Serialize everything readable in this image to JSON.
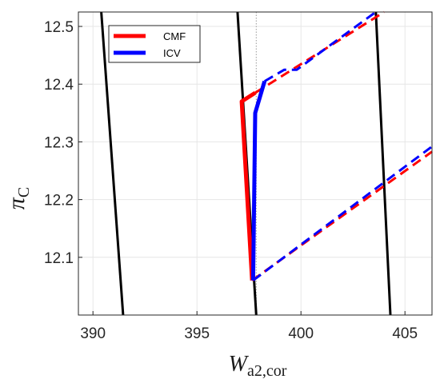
{
  "chart_data": {
    "type": "line",
    "title": "",
    "xlabel": {
      "main": "W",
      "sub": "a2,cor"
    },
    "ylabel": {
      "main": "π",
      "sub": "C"
    },
    "xlim": [
      389.3,
      406.3
    ],
    "ylim": [
      12.0,
      12.525
    ],
    "grid": true,
    "legend_position": "top-left",
    "x_ticks": [
      390,
      395,
      400,
      405
    ],
    "x_tick_labels": [
      "390",
      "395",
      "400",
      "405"
    ],
    "y_ticks": [
      12.1,
      12.2,
      12.3,
      12.4,
      12.5
    ],
    "y_tick_labels": [
      "12.1",
      "12.2",
      "12.3",
      "12.4",
      "12.5"
    ],
    "reference_line_x": 397.85,
    "colors": {
      "CMF": "#ff0000",
      "ICV": "#0000ff",
      "speed_line": "#000000",
      "reference": "#9a9a9a",
      "grid": "#e6e6e6"
    },
    "speed_lines": [
      {
        "x": [
          390.4,
          391.45
        ],
        "y": [
          12.525,
          12.0
        ]
      },
      {
        "x": [
          396.95,
          397.85
        ],
        "y": [
          12.525,
          12.0
        ]
      },
      {
        "x": [
          403.6,
          404.3
        ],
        "y": [
          12.525,
          12.0
        ]
      }
    ],
    "series": [
      {
        "name": "CMF",
        "color": "#ff0000",
        "segments": [
          {
            "style": "solid",
            "x": [
              397.65,
              397.15,
              397.8
            ],
            "y": [
              12.06,
              12.37,
              12.385
            ]
          },
          {
            "style": "dashed",
            "x": [
              397.8,
              404.0
            ],
            "y": [
              12.385,
              12.525
            ]
          },
          {
            "style": "dashed",
            "x": [
              397.65,
              406.3
            ],
            "y": [
              12.06,
              12.283
            ]
          }
        ]
      },
      {
        "name": "ICV",
        "color": "#0000ff",
        "segments": [
          {
            "style": "solid",
            "x": [
              397.7,
              397.8,
              398.25
            ],
            "y": [
              12.06,
              12.35,
              12.405
            ]
          },
          {
            "style": "dashed",
            "x": [
              398.25,
              399.2,
              399.8,
              401.5,
              403.6
            ],
            "y": [
              12.405,
              12.425,
              12.425,
              12.47,
              12.525
            ]
          },
          {
            "style": "dashed",
            "x": [
              397.7,
              406.3
            ],
            "y": [
              12.06,
              12.292
            ]
          }
        ]
      }
    ]
  }
}
